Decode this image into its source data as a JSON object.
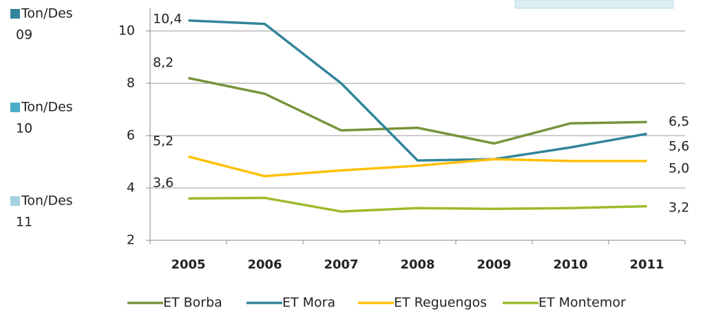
{
  "chart_data": {
    "type": "line",
    "categories": [
      "2005",
      "2006",
      "2007",
      "2008",
      "2009",
      "2010",
      "2011"
    ],
    "series": [
      {
        "name": "ET Borba",
        "color": "#77933c",
        "values": [
          8.2,
          7.6,
          6.2,
          6.3,
          5.7,
          6.47,
          6.52
        ],
        "value_labels": [
          "8,2",
          null,
          null,
          null,
          null,
          null,
          null
        ]
      },
      {
        "name": "ET Mora",
        "color": "#31849b",
        "values": [
          10.4,
          10.27,
          8.0,
          5.05,
          5.1,
          5.55,
          6.07
        ],
        "value_labels": [
          "10,4",
          null,
          null,
          null,
          null,
          null,
          null
        ]
      },
      {
        "name": "ET Reguengos",
        "color": "#ffc000",
        "values": [
          5.2,
          4.45,
          4.67,
          4.85,
          5.1,
          5.03,
          5.03
        ],
        "value_labels": [
          "5,2",
          null,
          null,
          null,
          null,
          null,
          null
        ]
      },
      {
        "name": "ET Montemor",
        "color": "#9bbb29",
        "values": [
          3.6,
          3.62,
          3.1,
          3.23,
          3.2,
          3.23,
          3.3
        ],
        "value_labels": [
          "3,6",
          null,
          null,
          null,
          null,
          null,
          null
        ]
      }
    ],
    "annotations": [
      "6,5",
      "5,6",
      "5,0",
      "3,2"
    ],
    "ylim": [
      2,
      10.8
    ],
    "yticks": [
      2,
      4,
      6,
      8,
      10
    ],
    "grid": true,
    "side_legend": [
      {
        "lines": [
          "Ton/Des",
          "09"
        ],
        "color": "#31849b"
      },
      {
        "lines": [
          "Ton/Des",
          "10"
        ],
        "color": "#4bacc6"
      },
      {
        "lines": [
          "Ton/Des",
          "11"
        ],
        "color": "#a5d2de"
      }
    ]
  }
}
